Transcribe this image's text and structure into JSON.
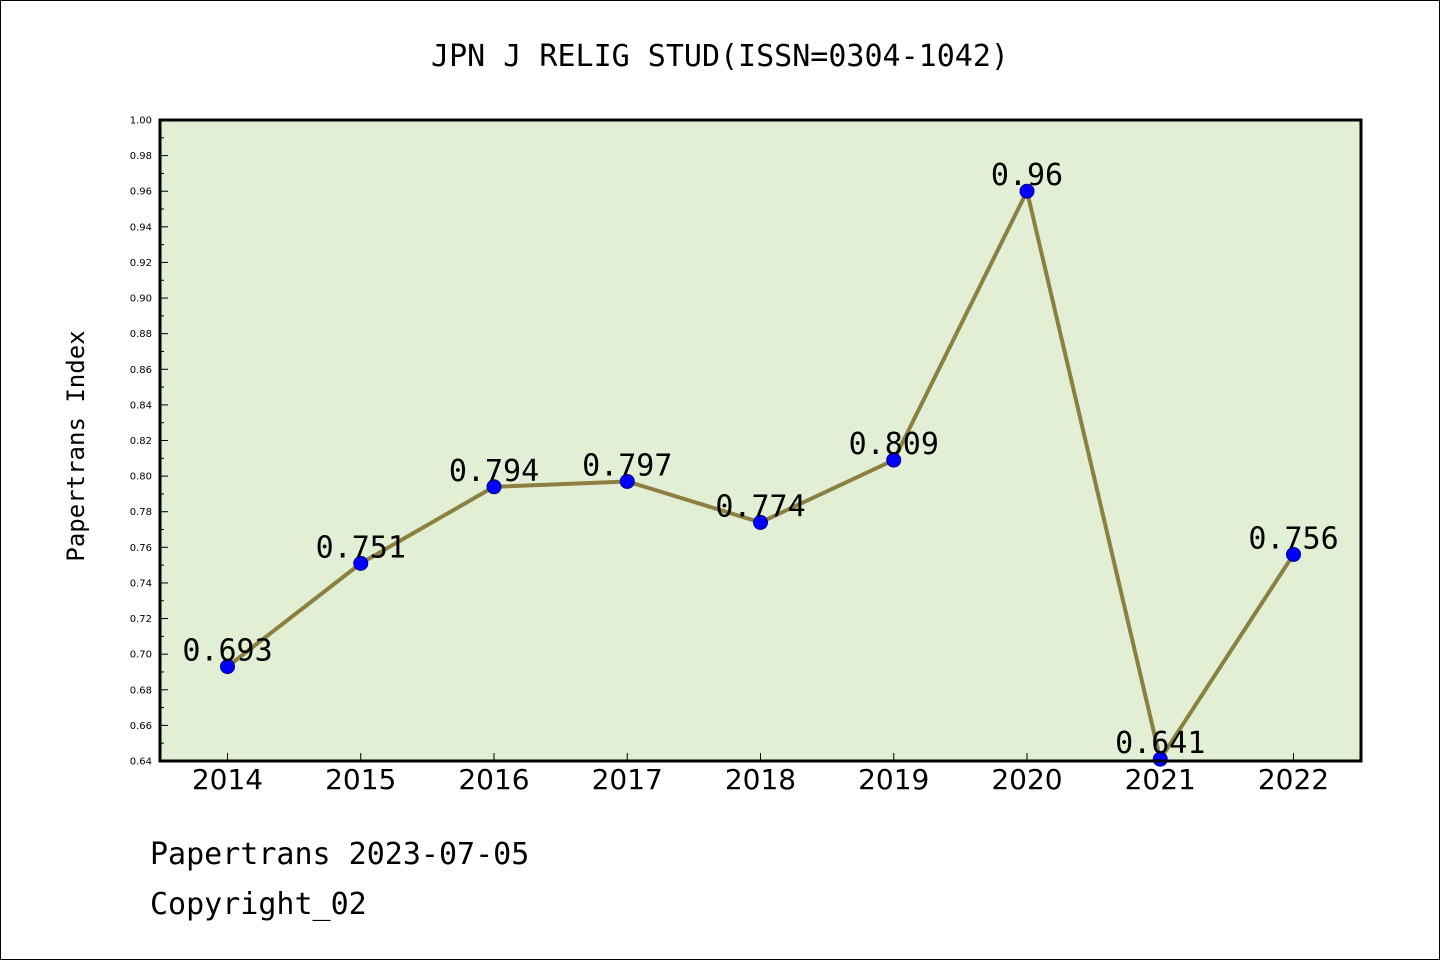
{
  "chart_data": {
    "type": "line",
    "title": "JPN J RELIG STUD(ISSN=0304-1042)",
    "xlabel": "",
    "ylabel": "Papertrans Index",
    "categories": [
      "2014",
      "2015",
      "2016",
      "2017",
      "2018",
      "2019",
      "2020",
      "2021",
      "2022"
    ],
    "series": [
      {
        "values": [
          0.693,
          0.751,
          0.794,
          0.797,
          0.774,
          0.809,
          0.96,
          0.641,
          0.756
        ]
      }
    ],
    "data_labels": [
      "0.693",
      "0.751",
      "0.794",
      "0.797",
      "0.774",
      "0.809",
      "0.96",
      "0.641",
      "0.756"
    ],
    "ylim": [
      0.64,
      1.0
    ],
    "yticks": [
      "0.64",
      "0.66",
      "0.68",
      "0.70",
      "0.72",
      "0.74",
      "0.76",
      "0.78",
      "0.80",
      "0.82",
      "0.84",
      "0.86",
      "0.88",
      "0.90",
      "0.92",
      "0.94",
      "0.96",
      "0.98",
      "1.00"
    ],
    "grid": false,
    "colors": {
      "plot_background": "#e2efd4",
      "line": "#8b8040",
      "marker": "#0000ff"
    }
  },
  "footer": {
    "line1": "Papertrans 2023-07-05",
    "line2": "Copyright_02"
  }
}
